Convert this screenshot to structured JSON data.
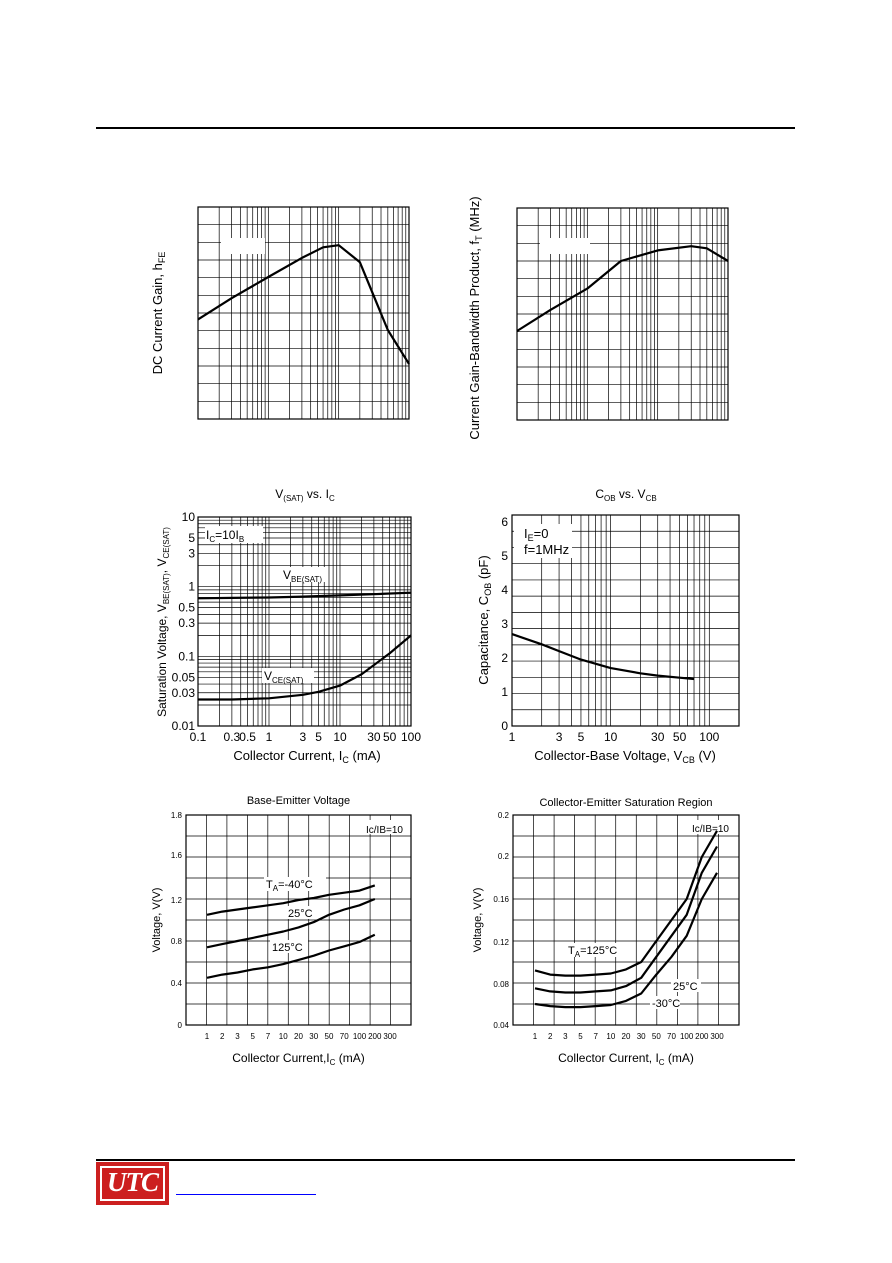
{
  "logo": {
    "text": "UTC"
  },
  "charts": [
    {
      "id": "hfe",
      "type": "line",
      "title": "",
      "xlabel": "",
      "ylabel": "DC Current Gain, h",
      "ylabel_sub": "FE",
      "inset": "",
      "series": [
        {
          "name": "",
          "x": [
            0.1,
            0.3,
            1,
            3,
            6,
            10,
            20,
            50,
            100
          ],
          "y": [
            0.47,
            0.57,
            0.67,
            0.76,
            0.81,
            0.82,
            0.74,
            0.42,
            0.26
          ]
        }
      ]
    },
    {
      "id": "ft",
      "type": "line",
      "title": "",
      "xlabel": "",
      "ylabel": "Current Gain-Bandwidth Product, f",
      "ylabel_sub": "T",
      "ylabel_suffix": " (MHz)",
      "inset": "",
      "series": [
        {
          "name": "",
          "x": [
            0.1,
            0.3,
            1,
            3,
            10,
            30,
            50,
            100
          ],
          "y": [
            0.42,
            0.52,
            0.62,
            0.75,
            0.8,
            0.82,
            0.81,
            0.75
          ]
        }
      ]
    },
    {
      "id": "vsat",
      "type": "line",
      "title_main": "V",
      "title_sub": "(SAT)",
      "title_rest": " vs. I",
      "title_sub2": "C",
      "xlabel": "Collector Current, I",
      "xlabel_sub": "C",
      "xlabel_suffix": " (mA)",
      "ylabel_parts": [
        "Saturation Voltage, V",
        "BE(SAT)",
        ", V",
        "CE(SAT)"
      ],
      "inset_main": "I",
      "inset_sub": "C",
      "inset_rest": "=10I",
      "inset_sub2": "B",
      "x_ticks": [
        "0.1",
        "0.3",
        "0.5",
        "1",
        "3",
        "5",
        "10",
        "30",
        "50",
        "100"
      ],
      "y_ticks": [
        "10",
        "5",
        "3",
        "1",
        "0.5",
        "0.3",
        "0.1",
        "0.05",
        "0.03",
        "0.01"
      ],
      "xlim": [
        0.1,
        100
      ],
      "ylim": [
        0.01,
        10
      ],
      "series": [
        {
          "name": "V",
          "name_sub": "BE(SAT)",
          "x": [
            0.1,
            0.3,
            1,
            3,
            10,
            30,
            100
          ],
          "y": [
            0.68,
            0.69,
            0.7,
            0.72,
            0.75,
            0.78,
            0.82
          ]
        },
        {
          "name": "V",
          "name_sub": "CE(SAT)",
          "x": [
            0.1,
            0.3,
            1,
            3,
            5,
            10,
            20,
            50,
            100
          ],
          "y": [
            0.024,
            0.024,
            0.025,
            0.028,
            0.031,
            0.038,
            0.055,
            0.11,
            0.2
          ]
        }
      ]
    },
    {
      "id": "cob",
      "type": "line",
      "title_main": "C",
      "title_sub": "OB",
      "title_rest": " vs. V",
      "title_sub2": "CB",
      "xlabel": "Collector-Base Voltage, V",
      "xlabel_sub": "CB",
      "xlabel_suffix": " (V)",
      "ylabel": "Capacitance, C",
      "ylabel_sub": "OB",
      "ylabel_suffix": " (pF)",
      "inset_lines": [
        {
          "main": "I",
          "sub": "E",
          "rest": "=0"
        },
        {
          "main": "f=1MHz",
          "sub": "",
          "rest": ""
        }
      ],
      "x_ticks": [
        "1",
        "3",
        "5",
        "10",
        "30",
        "50",
        "100"
      ],
      "y_ticks": [
        "6",
        "5",
        "4",
        "3",
        "2",
        "1",
        "0"
      ],
      "xlim": [
        1,
        200
      ],
      "ylim": [
        0,
        6.2
      ],
      "series": [
        {
          "name": "",
          "x": [
            1,
            2,
            3,
            5,
            10,
            20,
            30,
            50,
            70
          ],
          "y": [
            2.7,
            2.4,
            2.2,
            1.95,
            1.7,
            1.55,
            1.48,
            1.42,
            1.38
          ]
        }
      ]
    },
    {
      "id": "vbe",
      "type": "line",
      "title": "Base-Emitter Voltage",
      "xlabel": "Collector Current,I",
      "xlabel_sub": "C",
      "xlabel_suffix": " (mA)",
      "ylabel": "Voltage, V(V)",
      "inset": "Ic/IB=10",
      "x_ticks": [
        "1",
        "2",
        "3",
        "5",
        "7",
        "10",
        "20",
        "30",
        "50",
        "70",
        "100",
        "200",
        "300"
      ],
      "y_ticks": [
        "1.8",
        "1.6",
        "1.2",
        "0.8",
        "0.4",
        "0"
      ],
      "ylim": [
        0,
        2.0
      ],
      "series": [
        {
          "name": "T",
          "name_sub": "A",
          "name_rest": "=-40°C",
          "x": [
            1,
            2,
            3,
            5,
            7,
            10,
            20,
            30,
            50,
            70,
            100,
            200
          ],
          "y": [
            1.05,
            1.08,
            1.1,
            1.12,
            1.14,
            1.16,
            1.19,
            1.21,
            1.24,
            1.26,
            1.28,
            1.33
          ]
        },
        {
          "name": "25°C",
          "name_sub": "",
          "name_rest": "",
          "x": [
            1,
            2,
            3,
            5,
            7,
            10,
            20,
            30,
            50,
            70,
            100,
            200
          ],
          "y": [
            0.74,
            0.77,
            0.8,
            0.83,
            0.86,
            0.89,
            0.93,
            0.98,
            1.05,
            1.1,
            1.14,
            1.2
          ]
        },
        {
          "name": "125°C",
          "name_sub": "",
          "name_rest": "",
          "x": [
            1,
            2,
            3,
            5,
            7,
            10,
            20,
            30,
            50,
            70,
            100,
            200
          ],
          "y": [
            0.45,
            0.48,
            0.5,
            0.53,
            0.55,
            0.58,
            0.62,
            0.66,
            0.71,
            0.75,
            0.79,
            0.86
          ]
        }
      ]
    },
    {
      "id": "vcesat",
      "type": "line",
      "title": "Collector-Emitter Saturation Region",
      "xlabel": "Collector Current, I",
      "xlabel_sub": "C",
      "xlabel_suffix": " (mA)",
      "ylabel": "Voltage, V(V)",
      "inset": "Ic/IB=10",
      "x_ticks": [
        "1",
        "2",
        "3",
        "5",
        "7",
        "10",
        "20",
        "30",
        "50",
        "70",
        "100",
        "200",
        "300"
      ],
      "y_ticks": [
        "0.2",
        "0.2",
        "0.16",
        "0.12",
        "0.08",
        "0.04"
      ],
      "ylim": [
        0.04,
        0.24
      ],
      "series": [
        {
          "name": "T",
          "name_sub": "A",
          "name_rest": "=125°C",
          "x": [
            1,
            2,
            3,
            5,
            7,
            10,
            20,
            30,
            50,
            70,
            100,
            200,
            300
          ],
          "y": [
            0.092,
            0.088,
            0.087,
            0.087,
            0.088,
            0.089,
            0.093,
            0.1,
            0.12,
            0.14,
            0.16,
            0.2,
            0.225
          ]
        },
        {
          "name": "25°C",
          "name_sub": "",
          "name_rest": "",
          "x": [
            1,
            2,
            3,
            5,
            7,
            10,
            20,
            30,
            50,
            70,
            100,
            200,
            300
          ],
          "y": [
            0.075,
            0.072,
            0.071,
            0.071,
            0.072,
            0.073,
            0.077,
            0.085,
            0.105,
            0.125,
            0.145,
            0.185,
            0.21
          ]
        },
        {
          "name": "-30°C",
          "name_sub": "",
          "name_rest": "",
          "x": [
            1,
            2,
            3,
            5,
            7,
            10,
            20,
            30,
            50,
            70,
            100,
            200,
            300
          ],
          "y": [
            0.06,
            0.058,
            0.057,
            0.057,
            0.058,
            0.059,
            0.063,
            0.07,
            0.088,
            0.105,
            0.125,
            0.16,
            0.185
          ]
        }
      ]
    }
  ]
}
